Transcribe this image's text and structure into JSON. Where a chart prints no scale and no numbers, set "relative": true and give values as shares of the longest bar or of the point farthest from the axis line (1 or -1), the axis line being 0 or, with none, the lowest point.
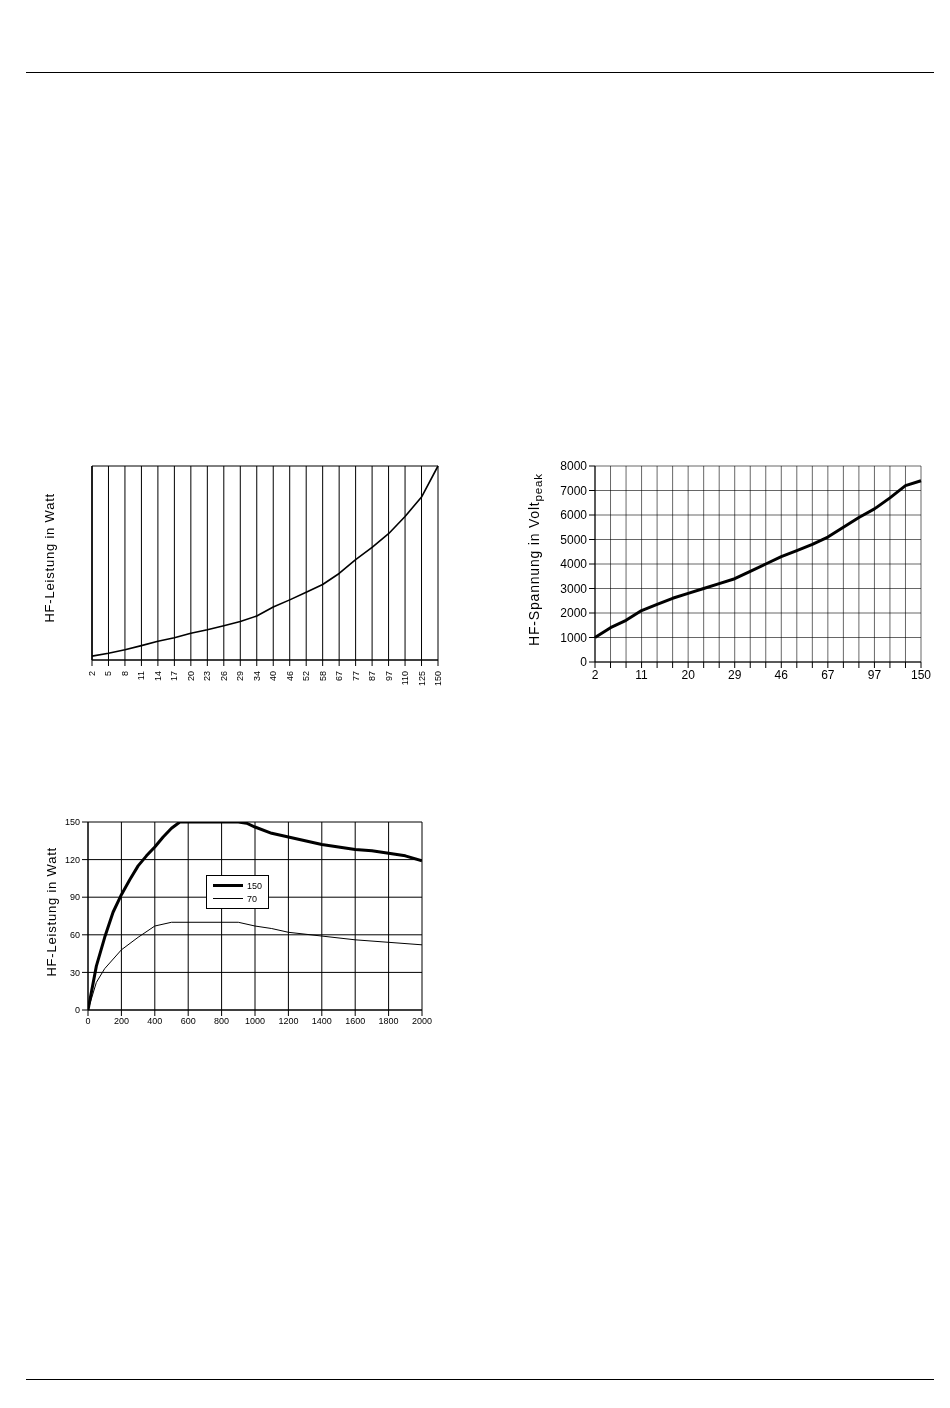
{
  "chart_data": [
    {
      "type": "line",
      "ylabel": "HF-Leistung in Watt",
      "categories": [
        "2",
        "5",
        "8",
        "11",
        "14",
        "17",
        "20",
        "23",
        "26",
        "29",
        "34",
        "40",
        "46",
        "52",
        "58",
        "67",
        "77",
        "87",
        "97",
        "110",
        "125",
        "150"
      ],
      "values": [
        0.02,
        0.035,
        0.053,
        0.074,
        0.097,
        0.115,
        0.138,
        0.156,
        0.177,
        0.198,
        0.227,
        0.273,
        0.31,
        0.349,
        0.389,
        0.446,
        0.517,
        0.58,
        0.651,
        0.74,
        0.84,
        1
      ],
      "color": "#000000",
      "relative": true,
      "grid": true,
      "marker": "none"
    },
    {
      "type": "line",
      "ylabel": "HF-Spannung in Volt$_{peak}$",
      "categories": [
        "2",
        null,
        null,
        "11",
        null,
        null,
        "20",
        null,
        null,
        "29",
        null,
        null,
        "46",
        null,
        null,
        "67",
        null,
        null,
        "97",
        null,
        null,
        "150"
      ],
      "values": [
        1000,
        1400,
        1700,
        2100,
        2350,
        2600,
        2800,
        3000,
        3200,
        3400,
        3700,
        4000,
        4300,
        4550,
        4800,
        5100,
        5500,
        5900,
        6250,
        6700,
        7200,
        7400
      ],
      "color": "#000000",
      "ylim": [
        0,
        8000
      ],
      "yticks": [
        0,
        1000,
        2000,
        3000,
        4000,
        5000,
        6000,
        7000,
        8000
      ],
      "grid": true,
      "marker": "none"
    },
    {
      "type": "line",
      "ylabel": "HF-Leistung in Watt",
      "xlim": [
        0,
        2000
      ],
      "xticks": [
        0,
        200,
        400,
        600,
        800,
        1000,
        1200,
        1400,
        1600,
        1800,
        2000
      ],
      "ylim": [
        0,
        150
      ],
      "yticks": [
        0,
        30,
        60,
        90,
        120,
        150
      ],
      "grid": true,
      "legend": "center",
      "marker": "none",
      "series": [
        {
          "name": "150",
          "color": "#000000",
          "x": [
            0,
            50,
            100,
            150,
            200,
            250,
            300,
            350,
            400,
            450,
            500,
            550,
            900,
            950,
            1000,
            1100,
            1200,
            1300,
            1400,
            1500,
            1600,
            1700,
            1800,
            1900,
            2000
          ],
          "values": [
            0,
            35,
            58,
            78,
            92,
            104,
            115,
            123,
            130,
            138,
            145,
            150,
            150,
            149,
            146,
            141,
            138,
            135,
            132,
            130,
            128,
            127,
            125,
            123,
            119
          ]
        },
        {
          "name": "70",
          "color": "#000000",
          "x": [
            0,
            50,
            100,
            200,
            300,
            400,
            500,
            900,
            1000,
            1100,
            1200,
            1400,
            1600,
            1800,
            2000
          ],
          "values": [
            0,
            22,
            33,
            48,
            58,
            67,
            70,
            70,
            67,
            65,
            62,
            59,
            56,
            54,
            52
          ]
        }
      ]
    }
  ]
}
